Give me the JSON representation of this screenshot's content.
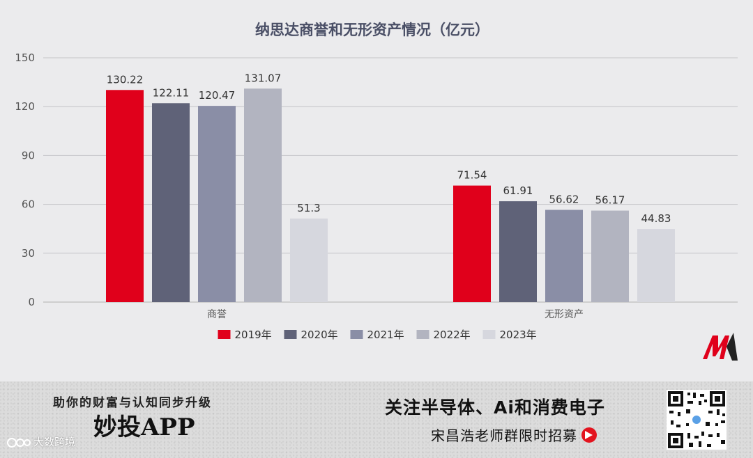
{
  "chart_data": {
    "type": "bar",
    "title": "纳思达商誉和无形资产情况（亿元）",
    "categories": [
      "商誉",
      "无形资产"
    ],
    "series": [
      {
        "name": "2019年",
        "color": "#e0001b",
        "values": [
          130.22,
          71.54
        ]
      },
      {
        "name": "2020年",
        "color": "#5f6278",
        "values": [
          122.11,
          61.91
        ]
      },
      {
        "name": "2021年",
        "color": "#8a8ea6",
        "values": [
          120.47,
          56.62
        ]
      },
      {
        "name": "2022年",
        "color": "#b2b4c0",
        "values": [
          131.07,
          56.17
        ]
      },
      {
        "name": "2023年",
        "color": "#d6d7de",
        "values": [
          51.3,
          44.83
        ]
      }
    ],
    "value_labels": [
      [
        "130.22",
        "71.54"
      ],
      [
        "122.11",
        "61.91"
      ],
      [
        "120.47",
        "56.62"
      ],
      [
        "131.07",
        "56.17"
      ],
      [
        "51.3",
        "44.83"
      ]
    ],
    "ylim": [
      0,
      150
    ],
    "yticks": [
      0,
      30,
      60,
      90,
      120,
      150
    ],
    "grid": true,
    "legend_position": "bottom"
  },
  "banner": {
    "tagline": "助你的财富与认知同步升级",
    "app_name": "妙投APP",
    "watermark": "大数跨境",
    "headline": "关注半导体、Ai和消费电子",
    "subline": "宋昌浩老师群限时招募"
  }
}
